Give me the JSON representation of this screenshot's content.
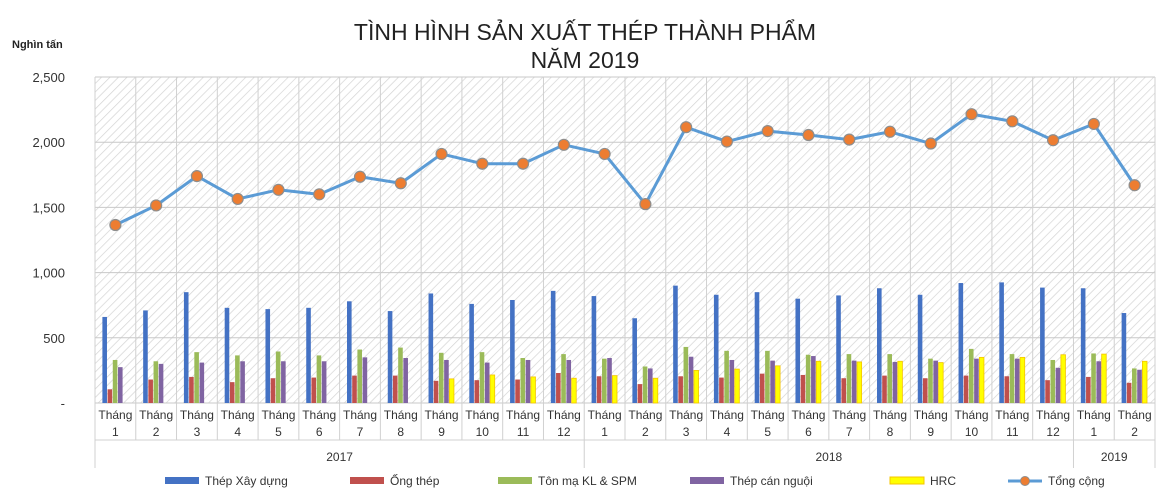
{
  "chart_data": {
    "type": "bar",
    "title_lines": [
      "TÌNH HÌNH SẢN XUẤT THÉP THÀNH PHẨM",
      "NĂM 2019"
    ],
    "ylabel": "Nghìn tấn",
    "ylim": [
      0,
      2500
    ],
    "yticks": [
      0,
      500,
      1000,
      1500,
      2000,
      2500
    ],
    "ytick_labels": [
      "-",
      "500",
      "1,000",
      "1,500",
      "2,000",
      "2,500"
    ],
    "categories": [
      "Tháng 1",
      "Tháng 2",
      "Tháng 3",
      "Tháng 4",
      "Tháng 5",
      "Tháng 6",
      "Tháng 7",
      "Tháng 8",
      "Tháng 9",
      "Tháng 10",
      "Tháng 11",
      "Tháng 12",
      "Tháng 1",
      "Tháng 2",
      "Tháng 3",
      "Tháng 4",
      "Tháng 5",
      "Tháng 6",
      "Tháng 7",
      "Tháng 8",
      "Tháng 9",
      "Tháng 10",
      "Tháng 11",
      "Tháng 12",
      "Tháng 1",
      "Tháng 2"
    ],
    "category_lines": [
      [
        "Tháng",
        "1"
      ],
      [
        "Tháng",
        "2"
      ],
      [
        "Tháng",
        "3"
      ],
      [
        "Tháng",
        "4"
      ],
      [
        "Tháng",
        "5"
      ],
      [
        "Tháng",
        "6"
      ],
      [
        "Tháng",
        "7"
      ],
      [
        "Tháng",
        "8"
      ],
      [
        "Tháng",
        "9"
      ],
      [
        "Tháng",
        "10"
      ],
      [
        "Tháng",
        "11"
      ],
      [
        "Tháng",
        "12"
      ],
      [
        "Tháng",
        "1"
      ],
      [
        "Tháng",
        "2"
      ],
      [
        "Tháng",
        "3"
      ],
      [
        "Tháng",
        "4"
      ],
      [
        "Tháng",
        "5"
      ],
      [
        "Tháng",
        "6"
      ],
      [
        "Tháng",
        "7"
      ],
      [
        "Tháng",
        "8"
      ],
      [
        "Tháng",
        "9"
      ],
      [
        "Tháng",
        "10"
      ],
      [
        "Tháng",
        "11"
      ],
      [
        "Tháng",
        "12"
      ],
      [
        "Tháng",
        "1"
      ],
      [
        "Tháng",
        "2"
      ]
    ],
    "year_groups": [
      {
        "label": "2017",
        "start": 0,
        "count": 12
      },
      {
        "label": "2018",
        "start": 12,
        "count": 12
      },
      {
        "label": "2019",
        "start": 24,
        "count": 2
      }
    ],
    "grid": true,
    "legend_position": "bottom",
    "series": [
      {
        "name": "Thép Xây dựng",
        "type": "bar",
        "color": "#4472C4",
        "values": [
          660,
          710,
          850,
          730,
          720,
          730,
          780,
          705,
          840,
          760,
          790,
          860,
          820,
          650,
          900,
          830,
          850,
          800,
          825,
          880,
          830,
          920,
          925,
          885,
          880,
          690
        ]
      },
      {
        "name": "Ống thép",
        "type": "bar",
        "color": "#C0504D",
        "values": [
          105,
          180,
          200,
          160,
          190,
          195,
          210,
          210,
          170,
          175,
          180,
          230,
          205,
          145,
          205,
          195,
          225,
          215,
          190,
          210,
          190,
          210,
          205,
          175,
          200,
          155
        ]
      },
      {
        "name": "Tôn mạ KL & SPM",
        "type": "bar",
        "color": "#9BBB59",
        "values": [
          330,
          320,
          390,
          365,
          395,
          365,
          410,
          425,
          385,
          390,
          345,
          375,
          340,
          280,
          430,
          400,
          400,
          370,
          375,
          375,
          340,
          415,
          375,
          330,
          380,
          265
        ]
      },
      {
        "name": "Thép cán nguội",
        "type": "bar",
        "color": "#8064A2",
        "values": [
          275,
          300,
          310,
          320,
          320,
          320,
          350,
          345,
          330,
          310,
          330,
          330,
          345,
          265,
          355,
          330,
          325,
          360,
          325,
          315,
          325,
          340,
          340,
          270,
          320,
          255
        ]
      },
      {
        "name": "HRC",
        "type": "bar",
        "color": "#FFFF00",
        "values": [
          0,
          0,
          0,
          0,
          0,
          0,
          0,
          0,
          185,
          215,
          200,
          190,
          210,
          190,
          250,
          260,
          285,
          320,
          315,
          320,
          310,
          350,
          350,
          370,
          375,
          320
        ]
      },
      {
        "name": "Tổng cộng",
        "type": "line",
        "color": "#5B9BD5",
        "marker_color": "#ED7D31",
        "values": [
          1365,
          1515,
          1740,
          1565,
          1635,
          1600,
          1735,
          1685,
          1910,
          1835,
          1835,
          1980,
          1910,
          1525,
          2115,
          2005,
          2085,
          2055,
          2020,
          2080,
          1990,
          2215,
          2160,
          2015,
          2140,
          1670
        ]
      }
    ]
  }
}
